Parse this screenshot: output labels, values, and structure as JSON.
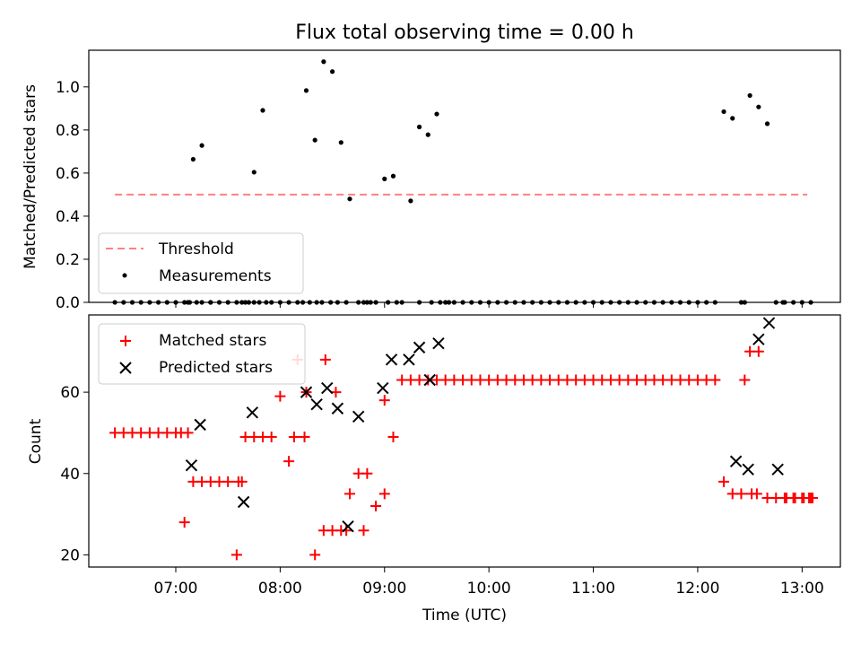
{
  "figure": {
    "title": "Flux total observing time = 0.00 h",
    "xlabel": "Time (UTC)",
    "xticks": [
      "07:00",
      "08:00",
      "09:00",
      "10:00",
      "11:00",
      "12:00",
      "13:00"
    ]
  },
  "chart_data": [
    {
      "type": "scatter",
      "ylabel": "Matched/Predicted stars",
      "xlim": [
        "06:10",
        "13:22"
      ],
      "ylim": [
        0,
        1.17
      ],
      "yticks": [
        "0.0",
        "0.2",
        "0.4",
        "0.6",
        "0.8",
        "1.0"
      ],
      "legend_position": "lower-left",
      "threshold": {
        "name": "Threshold",
        "value": 0.5,
        "x_start": "06:25",
        "x_end": "13:03",
        "color": "#ff8080",
        "style": "dashed"
      },
      "series": [
        {
          "name": "Measurements",
          "color": "#000000",
          "x": [
            "06:25",
            "06:30",
            "06:35",
            "06:40",
            "06:45",
            "06:50",
            "06:55",
            "07:00",
            "07:05",
            "07:10",
            "07:15",
            "07:20",
            "07:25",
            "07:30",
            "07:35",
            "07:40",
            "07:45",
            "07:50",
            "07:55",
            "08:00",
            "08:05",
            "08:10",
            "08:15",
            "08:20",
            "08:25",
            "08:30",
            "08:35",
            "08:40",
            "08:45",
            "08:50",
            "08:55",
            "09:00",
            "09:05",
            "09:10",
            "09:15",
            "09:20",
            "09:25",
            "09:30",
            "09:35",
            "09:40",
            "09:45",
            "09:50",
            "09:55",
            "10:00",
            "10:05",
            "10:10",
            "10:15",
            "10:20",
            "10:25",
            "10:30",
            "10:35",
            "10:40",
            "10:45",
            "10:50",
            "10:55",
            "11:00",
            "11:05",
            "11:10",
            "11:15",
            "11:20",
            "11:25",
            "11:30",
            "11:35",
            "11:40",
            "11:45",
            "11:50",
            "11:55",
            "12:00",
            "12:05",
            "12:10",
            "12:15",
            "12:20",
            "12:25",
            "12:30",
            "12:35",
            "12:40",
            "12:45",
            "12:50",
            "12:55",
            "13:00",
            "13:05",
            "07:07",
            "07:08",
            "07:12",
            "07:15",
            "07:20",
            "07:38",
            "07:42",
            "07:45",
            "07:48",
            "07:52",
            "08:13",
            "08:17",
            "08:21",
            "08:24",
            "08:29",
            "08:33",
            "08:38",
            "08:48",
            "08:52",
            "09:02",
            "09:07",
            "09:20",
            "09:27",
            "09:32",
            "09:37",
            "12:27",
            "12:49"
          ],
          "y": [
            0,
            0,
            0,
            0,
            0,
            0,
            0,
            0,
            0,
            0.664,
            0.728,
            0,
            0,
            0,
            0,
            0,
            0.604,
            0.891,
            0,
            0,
            0,
            0,
            0.983,
            0.753,
            1.117,
            1.071,
            0.742,
            0.48,
            0,
            0,
            0,
            0.573,
            0.586,
            0,
            0.471,
            0.814,
            0.778,
            0.874,
            0,
            0,
            0,
            0,
            0,
            0,
            0,
            0,
            0,
            0,
            0,
            0,
            0,
            0,
            0,
            0,
            0,
            0,
            0,
            0,
            0,
            0,
            0,
            0,
            0,
            0,
            0,
            0,
            0,
            0,
            0,
            0,
            0.885,
            0.854,
            0,
            0.96,
            0.907,
            0.829,
            0,
            0,
            0,
            0,
            0,
            0,
            0,
            0,
            0,
            0,
            0,
            0,
            0,
            0,
            0,
            0,
            0,
            0,
            0,
            0,
            0,
            0,
            0,
            0,
            0,
            0,
            0,
            0,
            0,
            0,
            0,
            0
          ]
        }
      ]
    },
    {
      "type": "scatter",
      "ylabel": "Count",
      "xlim": [
        "06:10",
        "13:22"
      ],
      "ylim": [
        17,
        79
      ],
      "yticks": [
        "20",
        "40",
        "60"
      ],
      "legend_position": "upper-left",
      "series": [
        {
          "name": "Matched stars",
          "marker": "+",
          "color": "#ff0000",
          "x": [
            "06:25",
            "06:30",
            "06:35",
            "06:40",
            "06:45",
            "06:50",
            "06:55",
            "07:00",
            "07:05",
            "07:10",
            "07:15",
            "07:20",
            "07:25",
            "07:30",
            "07:35",
            "07:40",
            "07:45",
            "07:50",
            "07:55",
            "08:00",
            "08:05",
            "08:10",
            "08:15",
            "08:20",
            "08:25",
            "08:30",
            "08:35",
            "08:40",
            "08:45",
            "08:50",
            "08:55",
            "09:00",
            "09:05",
            "09:10",
            "09:15",
            "09:20",
            "09:25",
            "09:30",
            "09:35",
            "09:40",
            "09:45",
            "09:50",
            "09:55",
            "10:00",
            "10:05",
            "10:10",
            "10:15",
            "10:20",
            "10:25",
            "10:30",
            "10:35",
            "10:40",
            "10:45",
            "10:50",
            "10:55",
            "11:00",
            "11:05",
            "11:10",
            "11:15",
            "11:20",
            "11:25",
            "11:30",
            "11:35",
            "11:40",
            "11:45",
            "11:50",
            "11:55",
            "12:00",
            "12:05",
            "12:10",
            "12:15",
            "12:20",
            "12:25",
            "12:30",
            "12:35",
            "12:40",
            "12:45",
            "12:50",
            "12:55",
            "13:00",
            "13:05",
            "07:03",
            "07:07",
            "07:36",
            "07:38",
            "08:08",
            "08:26",
            "08:32",
            "08:38",
            "08:48",
            "09:00",
            "12:27",
            "12:31",
            "12:34",
            "12:51",
            "12:56",
            "13:01",
            "13:04",
            "13:06",
            "08:14"
          ],
          "y": [
            50,
            50,
            50,
            50,
            50,
            50,
            50,
            50,
            28,
            38,
            38,
            38,
            38,
            38,
            20,
            49,
            49,
            49,
            49,
            59,
            43,
            68,
            60,
            20,
            26,
            26,
            26,
            35,
            40,
            40,
            32,
            58,
            49,
            63,
            63,
            63,
            63,
            63,
            63,
            63,
            63,
            63,
            63,
            63,
            63,
            63,
            63,
            63,
            63,
            63,
            63,
            63,
            63,
            63,
            63,
            63,
            63,
            63,
            63,
            63,
            63,
            63,
            63,
            63,
            63,
            63,
            63,
            63,
            63,
            63,
            38,
            35,
            35,
            70,
            70,
            34,
            34,
            34,
            34,
            34,
            34,
            50,
            50,
            38,
            38,
            49,
            68,
            60,
            26,
            26,
            35,
            63,
            35,
            35,
            34,
            34,
            34,
            34,
            34,
            49
          ]
        },
        {
          "name": "Predicted stars",
          "marker": "x",
          "color": "#000000",
          "x": [
            "07:09",
            "07:14",
            "07:39",
            "07:44",
            "08:15",
            "08:21",
            "08:27",
            "08:33",
            "08:39",
            "08:45",
            "08:59",
            "09:04",
            "09:14",
            "09:20",
            "09:26",
            "09:31",
            "12:22",
            "12:29",
            "12:35",
            "12:41",
            "12:46"
          ],
          "y": [
            42,
            52,
            33,
            55,
            60,
            57,
            61,
            56,
            27,
            54,
            61,
            68,
            68,
            71,
            63,
            72,
            43,
            41,
            73,
            77,
            41
          ]
        }
      ]
    }
  ]
}
